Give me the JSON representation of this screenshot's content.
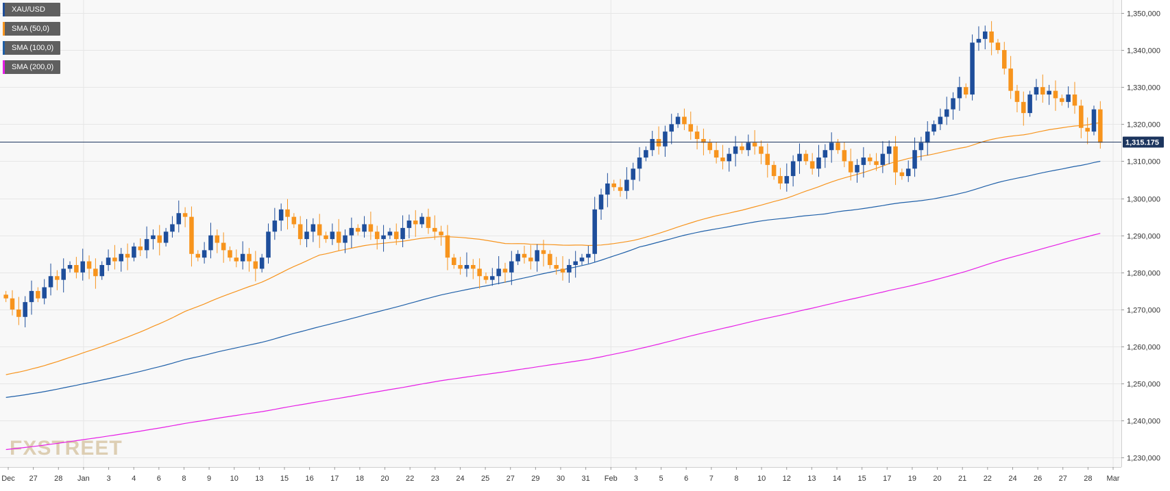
{
  "chart_data": {
    "type": "candlestick",
    "instrument": "XAU/USD",
    "legend": [
      {
        "label": "XAU/USD",
        "color": "#1e4e9b"
      },
      {
        "label": "SMA (50,0)",
        "color": "#f7941d"
      },
      {
        "label": "SMA (100,0)",
        "color": "#1e5fa8"
      },
      {
        "label": "SMA (200,0)",
        "color": "#e61ee6"
      }
    ],
    "y_axis": {
      "ticks": [
        "1,230,000",
        "1,240,000",
        "1,250,000",
        "1,260,000",
        "1,270,000",
        "1,280,000",
        "1,290,000",
        "1,300,000",
        "1,310,000",
        "1,320,000",
        "1,330,000",
        "1,340,000",
        "1,350,000"
      ],
      "tick_values": [
        1230,
        1240,
        1250,
        1260,
        1270,
        1280,
        1290,
        1300,
        1310,
        1320,
        1330,
        1340,
        1350
      ],
      "range": [
        1227.5,
        1353.5
      ]
    },
    "x_axis": {
      "labels": [
        "Dec",
        "27",
        "28",
        "Jan",
        "3",
        "4",
        "6",
        "8",
        "9",
        "10",
        "13",
        "15",
        "16",
        "17",
        "18",
        "20",
        "22",
        "23",
        "24",
        "25",
        "27",
        "29",
        "30",
        "31",
        "Feb",
        "3",
        "5",
        "6",
        "7",
        "8",
        "10",
        "12",
        "13",
        "14",
        "15",
        "17",
        "19",
        "20",
        "21",
        "22",
        "24",
        "26",
        "27",
        "28",
        "Mar"
      ],
      "range": [
        0,
        162
      ]
    },
    "current_price": {
      "label": "1,315.175",
      "value": 1315.175
    },
    "colors": {
      "up": "#1e4e9b",
      "down": "#f7941d",
      "grid": "#e6e6e6",
      "background": "#f8f8f8",
      "price_line": "#1c355e"
    },
    "watermark": "FXSTREET",
    "candle_closes": [
      1273,
      1270,
      1268,
      1272,
      1275,
      1273,
      1276,
      1279,
      1278,
      1281,
      1282,
      1280,
      1283,
      1281,
      1279,
      1282,
      1284,
      1283,
      1285,
      1284,
      1287,
      1286,
      1289,
      1290,
      1288,
      1291,
      1293,
      1296,
      1295,
      1285,
      1284,
      1286,
      1290,
      1288,
      1286,
      1284,
      1283,
      1285,
      1283,
      1281,
      1284,
      1291,
      1294,
      1297,
      1295,
      1293,
      1289,
      1291,
      1293,
      1290,
      1289,
      1291,
      1288,
      1290,
      1292,
      1291,
      1293,
      1291,
      1289,
      1290,
      1291,
      1289,
      1292,
      1294,
      1293,
      1295,
      1292,
      1291,
      1290,
      1284,
      1282,
      1281,
      1282,
      1281,
      1279,
      1278,
      1279,
      1281,
      1280,
      1283,
      1285,
      1284,
      1283,
      1286,
      1285,
      1282,
      1281,
      1280,
      1282,
      1283,
      1284,
      1285,
      1297,
      1301,
      1304,
      1303,
      1302,
      1305,
      1308,
      1311,
      1313,
      1316,
      1314,
      1318,
      1320,
      1322,
      1320,
      1318,
      1316,
      1315,
      1313,
      1311,
      1310,
      1312,
      1314,
      1313,
      1315,
      1314,
      1312,
      1309,
      1306,
      1304,
      1306,
      1310,
      1312,
      1310,
      1308,
      1311,
      1313,
      1315,
      1313,
      1310,
      1307,
      1309,
      1311,
      1310,
      1309,
      1312,
      1314,
      1307,
      1306,
      1308,
      1313,
      1315,
      1318,
      1320,
      1322,
      1324,
      1327,
      1330,
      1328,
      1342,
      1343,
      1345,
      1342,
      1340,
      1335,
      1329,
      1326,
      1323,
      1328,
      1330,
      1328,
      1329,
      1327,
      1326,
      1328,
      1325,
      1319,
      1318,
      1324,
      1315
    ]
  }
}
